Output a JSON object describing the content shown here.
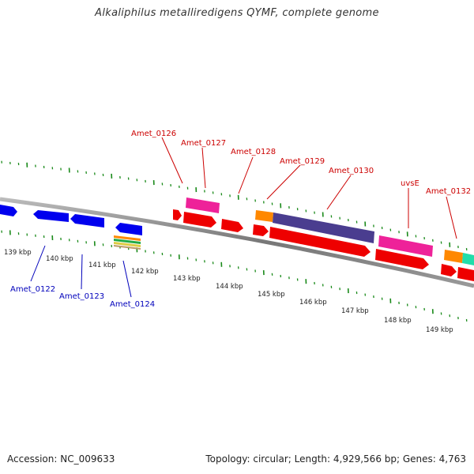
{
  "title": "Alkaliphilus metalliredigens QYMF, complete genome",
  "footer": {
    "accession": "Accession: NC_009633",
    "summary": "Topology: circular; Length: 4,929,566 bp; Genes: 4,763"
  },
  "colors": {
    "backbone": "#888888",
    "ticks": "#1a8a1a",
    "forward_label": "#cc0000",
    "reverse_label": "#0000bb",
    "red_gene": "#ee0000",
    "blue_gene": "#0000ee",
    "pink_gene": "#ee2299",
    "orange_gene": "#ff8800",
    "purple_gene": "#4a3d8f",
    "teal_gene": "#22ddaa"
  },
  "kbp_labels": [
    "139 kbp",
    "140 kbp",
    "141 kbp",
    "142 kbp",
    "143 kbp",
    "144 kbp",
    "145 kbp",
    "146 kbp",
    "147 kbp",
    "148 kbp",
    "149 kbp"
  ],
  "forward_genes": [
    "Amet_0126",
    "Amet_0127",
    "Amet_0128",
    "Amet_0129",
    "Amet_0130",
    "uvsE",
    "Amet_0132"
  ],
  "reverse_genes": [
    "Amet_0122",
    "Amet_0123",
    "Amet_0124"
  ]
}
